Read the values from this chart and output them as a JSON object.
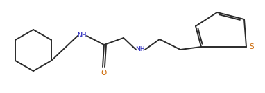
{
  "bg_color": "#ffffff",
  "line_color": "#2a2a2a",
  "nh_color": "#2222bb",
  "o_color": "#cc6600",
  "s_color": "#cc6600",
  "line_width": 1.4,
  "figsize": [
    3.82,
    1.35
  ],
  "dpi": 100,
  "xlim": [
    0,
    382
  ],
  "ylim": [
    0,
    135
  ]
}
